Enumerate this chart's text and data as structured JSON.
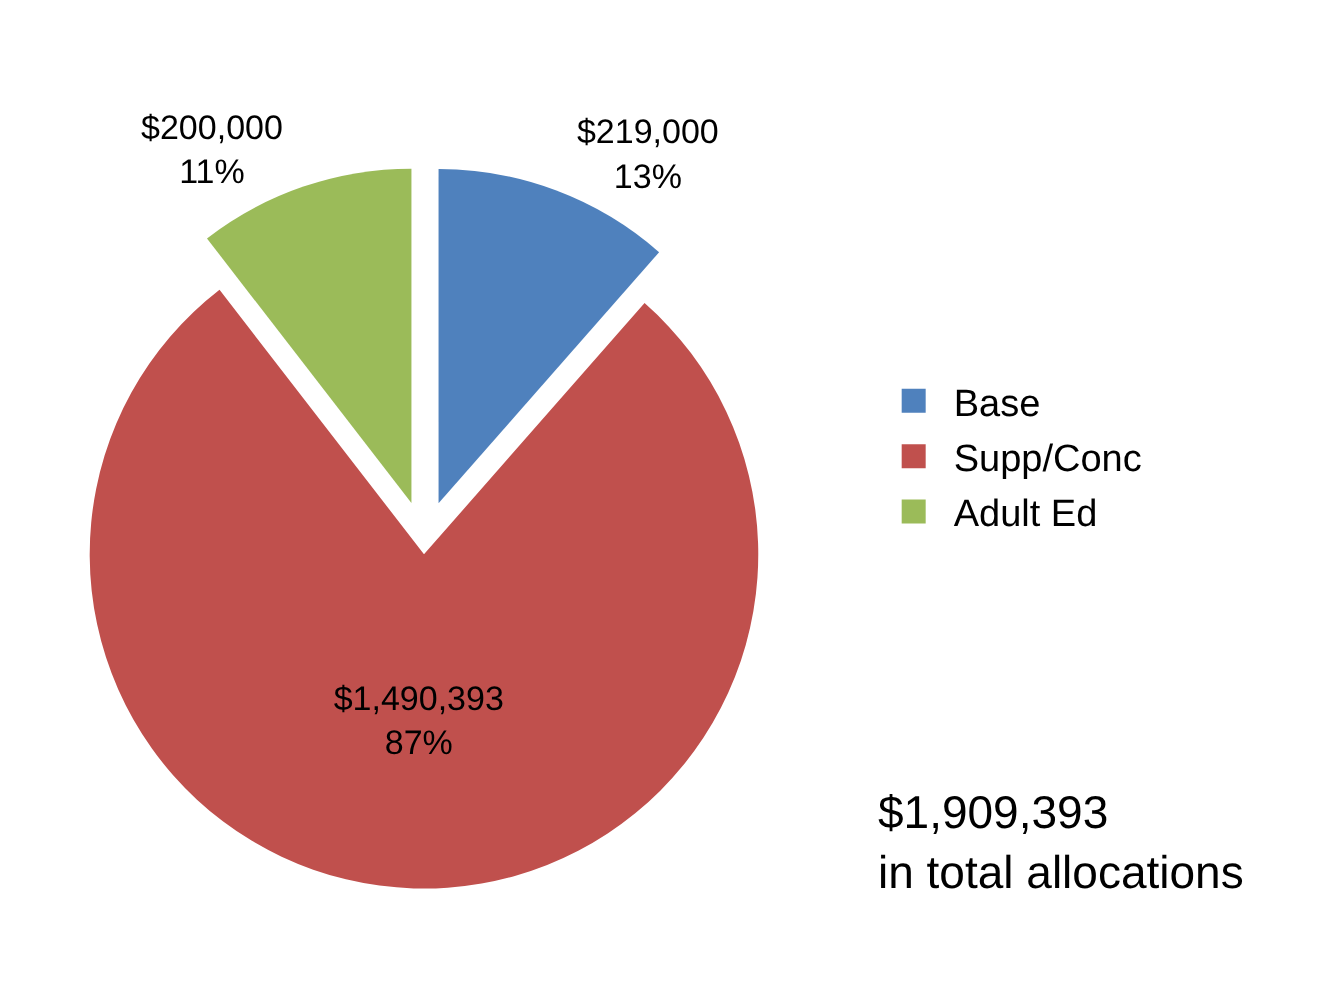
{
  "chart_data": {
    "type": "pie",
    "categories": [
      "Base",
      "Supp/Conc",
      "Adult Ed"
    ],
    "values": [
      219000,
      1490393,
      200000
    ],
    "colors": [
      "#4f81bd",
      "#c0504d",
      "#9bbb59"
    ],
    "value_labels": [
      "$219,000\n13%",
      "$1,490,393\n87%",
      "$200,000\n11%"
    ],
    "legend": "right",
    "annotations": [
      "$1,909,393\nin total allocations"
    ]
  }
}
